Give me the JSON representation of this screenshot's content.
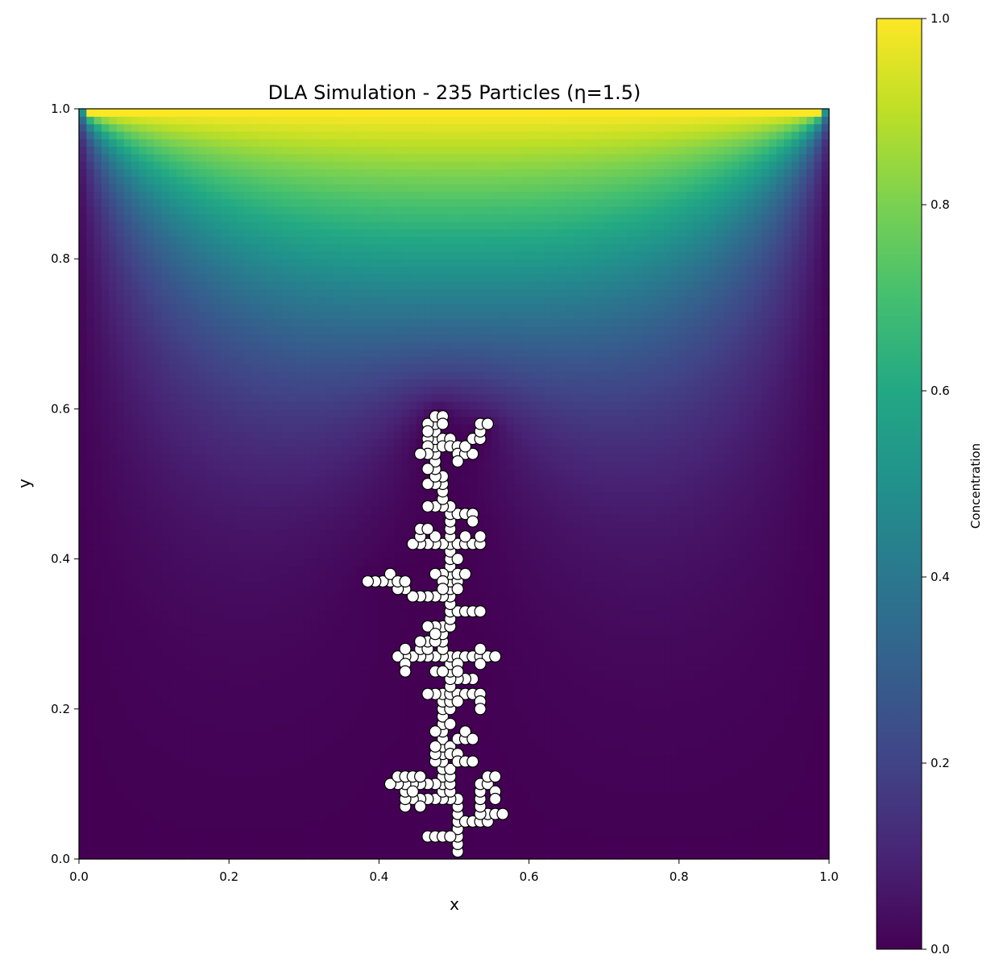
{
  "chart_data": {
    "type": "heatmap",
    "title": "DLA Simulation - 235 Particles (η=1.5)",
    "xlabel": "x",
    "ylabel": "y",
    "xlim": [
      0.0,
      1.0
    ],
    "ylim": [
      0.0,
      1.0
    ],
    "xticks": [
      "0.0",
      "0.2",
      "0.4",
      "0.6",
      "0.8",
      "1.0"
    ],
    "yticks": [
      "0.0",
      "0.2",
      "0.4",
      "0.6",
      "0.8",
      "1.0"
    ],
    "grid": false,
    "heatmap": {
      "colormap": "viridis",
      "field": "Concentration",
      "boundary_top": 1.0,
      "boundary_sides": 0.0,
      "boundary_bottom": 0.0,
      "cluster_sink": 0.0
    },
    "colorbar": {
      "label": "Concentration",
      "range": [
        0.0,
        1.0
      ],
      "ticks": [
        "0.0",
        "0.2",
        "0.4",
        "0.6",
        "0.8",
        "1.0"
      ]
    },
    "particle_style": {
      "fill": "#ffffff",
      "edge": "#000000"
    },
    "particles": [
      [
        0.505,
        0.01
      ],
      [
        0.505,
        0.02
      ],
      [
        0.505,
        0.03
      ],
      [
        0.505,
        0.04
      ],
      [
        0.505,
        0.05
      ],
      [
        0.505,
        0.06
      ],
      [
        0.505,
        0.07
      ],
      [
        0.505,
        0.08
      ],
      [
        0.465,
        0.03
      ],
      [
        0.475,
        0.03
      ],
      [
        0.485,
        0.03
      ],
      [
        0.495,
        0.03
      ],
      [
        0.515,
        0.05
      ],
      [
        0.525,
        0.05
      ],
      [
        0.535,
        0.05
      ],
      [
        0.545,
        0.05
      ],
      [
        0.545,
        0.06
      ],
      [
        0.555,
        0.06
      ],
      [
        0.565,
        0.06
      ],
      [
        0.535,
        0.06
      ],
      [
        0.535,
        0.07
      ],
      [
        0.535,
        0.08
      ],
      [
        0.535,
        0.09
      ],
      [
        0.535,
        0.1
      ],
      [
        0.545,
        0.1
      ],
      [
        0.545,
        0.11
      ],
      [
        0.555,
        0.11
      ],
      [
        0.555,
        0.09
      ],
      [
        0.555,
        0.08
      ],
      [
        0.495,
        0.08
      ],
      [
        0.485,
        0.08
      ],
      [
        0.475,
        0.08
      ],
      [
        0.465,
        0.08
      ],
      [
        0.455,
        0.08
      ],
      [
        0.445,
        0.08
      ],
      [
        0.435,
        0.07
      ],
      [
        0.435,
        0.08
      ],
      [
        0.435,
        0.09
      ],
      [
        0.455,
        0.07
      ],
      [
        0.485,
        0.09
      ],
      [
        0.485,
        0.1
      ],
      [
        0.485,
        0.11
      ],
      [
        0.485,
        0.12
      ],
      [
        0.495,
        0.09
      ],
      [
        0.495,
        0.1
      ],
      [
        0.495,
        0.11
      ],
      [
        0.495,
        0.12
      ],
      [
        0.475,
        0.1
      ],
      [
        0.465,
        0.1
      ],
      [
        0.455,
        0.1
      ],
      [
        0.445,
        0.1
      ],
      [
        0.435,
        0.1
      ],
      [
        0.425,
        0.1
      ],
      [
        0.415,
        0.1
      ],
      [
        0.425,
        0.11
      ],
      [
        0.435,
        0.11
      ],
      [
        0.445,
        0.11
      ],
      [
        0.455,
        0.11
      ],
      [
        0.445,
        0.09
      ],
      [
        0.485,
        0.13
      ],
      [
        0.485,
        0.14
      ],
      [
        0.485,
        0.15
      ],
      [
        0.485,
        0.16
      ],
      [
        0.485,
        0.17
      ],
      [
        0.485,
        0.18
      ],
      [
        0.485,
        0.19
      ],
      [
        0.485,
        0.2
      ],
      [
        0.485,
        0.21
      ],
      [
        0.485,
        0.22
      ],
      [
        0.475,
        0.13
      ],
      [
        0.475,
        0.14
      ],
      [
        0.475,
        0.15
      ],
      [
        0.475,
        0.17
      ],
      [
        0.495,
        0.15
      ],
      [
        0.495,
        0.14
      ],
      [
        0.505,
        0.14
      ],
      [
        0.505,
        0.13
      ],
      [
        0.515,
        0.13
      ],
      [
        0.525,
        0.13
      ],
      [
        0.495,
        0.18
      ],
      [
        0.505,
        0.16
      ],
      [
        0.515,
        0.16
      ],
      [
        0.515,
        0.17
      ],
      [
        0.525,
        0.16
      ],
      [
        0.495,
        0.2
      ],
      [
        0.495,
        0.21
      ],
      [
        0.495,
        0.22
      ],
      [
        0.505,
        0.22
      ],
      [
        0.515,
        0.22
      ],
      [
        0.525,
        0.22
      ],
      [
        0.535,
        0.22
      ],
      [
        0.535,
        0.21
      ],
      [
        0.535,
        0.2
      ],
      [
        0.505,
        0.21
      ],
      [
        0.525,
        0.24
      ],
      [
        0.515,
        0.24
      ],
      [
        0.505,
        0.24
      ],
      [
        0.475,
        0.22
      ],
      [
        0.465,
        0.22
      ],
      [
        0.495,
        0.23
      ],
      [
        0.495,
        0.24
      ],
      [
        0.495,
        0.25
      ],
      [
        0.495,
        0.26
      ],
      [
        0.495,
        0.27
      ],
      [
        0.485,
        0.27
      ],
      [
        0.475,
        0.27
      ],
      [
        0.465,
        0.27
      ],
      [
        0.455,
        0.27
      ],
      [
        0.445,
        0.27
      ],
      [
        0.435,
        0.27
      ],
      [
        0.425,
        0.27
      ],
      [
        0.435,
        0.28
      ],
      [
        0.435,
        0.26
      ],
      [
        0.435,
        0.25
      ],
      [
        0.455,
        0.28
      ],
      [
        0.465,
        0.28
      ],
      [
        0.465,
        0.29
      ],
      [
        0.455,
        0.29
      ],
      [
        0.475,
        0.25
      ],
      [
        0.485,
        0.25
      ],
      [
        0.485,
        0.28
      ],
      [
        0.505,
        0.27
      ],
      [
        0.515,
        0.27
      ],
      [
        0.525,
        0.27
      ],
      [
        0.535,
        0.27
      ],
      [
        0.545,
        0.27
      ],
      [
        0.555,
        0.27
      ],
      [
        0.535,
        0.28
      ],
      [
        0.535,
        0.26
      ],
      [
        0.505,
        0.26
      ],
      [
        0.505,
        0.25
      ],
      [
        0.485,
        0.29
      ],
      [
        0.485,
        0.3
      ],
      [
        0.485,
        0.31
      ],
      [
        0.475,
        0.31
      ],
      [
        0.465,
        0.31
      ],
      [
        0.495,
        0.31
      ],
      [
        0.495,
        0.32
      ],
      [
        0.495,
        0.33
      ],
      [
        0.505,
        0.33
      ],
      [
        0.515,
        0.33
      ],
      [
        0.525,
        0.33
      ],
      [
        0.535,
        0.33
      ],
      [
        0.475,
        0.29
      ],
      [
        0.475,
        0.3
      ],
      [
        0.495,
        0.34
      ],
      [
        0.495,
        0.35
      ],
      [
        0.485,
        0.35
      ],
      [
        0.475,
        0.35
      ],
      [
        0.465,
        0.35
      ],
      [
        0.455,
        0.35
      ],
      [
        0.445,
        0.35
      ],
      [
        0.435,
        0.36
      ],
      [
        0.425,
        0.36
      ],
      [
        0.415,
        0.37
      ],
      [
        0.405,
        0.37
      ],
      [
        0.395,
        0.37
      ],
      [
        0.385,
        0.37
      ],
      [
        0.415,
        0.38
      ],
      [
        0.425,
        0.37
      ],
      [
        0.435,
        0.37
      ],
      [
        0.495,
        0.36
      ],
      [
        0.495,
        0.37
      ],
      [
        0.495,
        0.38
      ],
      [
        0.495,
        0.39
      ],
      [
        0.485,
        0.38
      ],
      [
        0.475,
        0.38
      ],
      [
        0.485,
        0.37
      ],
      [
        0.505,
        0.37
      ],
      [
        0.505,
        0.38
      ],
      [
        0.515,
        0.38
      ],
      [
        0.505,
        0.36
      ],
      [
        0.485,
        0.36
      ],
      [
        0.495,
        0.4
      ],
      [
        0.495,
        0.41
      ],
      [
        0.495,
        0.42
      ],
      [
        0.505,
        0.4
      ],
      [
        0.505,
        0.42
      ],
      [
        0.485,
        0.42
      ],
      [
        0.475,
        0.42
      ],
      [
        0.465,
        0.42
      ],
      [
        0.455,
        0.42
      ],
      [
        0.445,
        0.42
      ],
      [
        0.455,
        0.43
      ],
      [
        0.475,
        0.43
      ],
      [
        0.455,
        0.44
      ],
      [
        0.465,
        0.44
      ],
      [
        0.515,
        0.42
      ],
      [
        0.525,
        0.42
      ],
      [
        0.535,
        0.42
      ],
      [
        0.535,
        0.43
      ],
      [
        0.515,
        0.43
      ],
      [
        0.495,
        0.43
      ],
      [
        0.495,
        0.44
      ],
      [
        0.495,
        0.45
      ],
      [
        0.495,
        0.46
      ],
      [
        0.505,
        0.46
      ],
      [
        0.515,
        0.46
      ],
      [
        0.525,
        0.46
      ],
      [
        0.525,
        0.45
      ],
      [
        0.495,
        0.47
      ],
      [
        0.485,
        0.47
      ],
      [
        0.475,
        0.47
      ],
      [
        0.465,
        0.47
      ],
      [
        0.485,
        0.48
      ],
      [
        0.485,
        0.49
      ],
      [
        0.485,
        0.5
      ],
      [
        0.475,
        0.5
      ],
      [
        0.465,
        0.5
      ],
      [
        0.485,
        0.51
      ],
      [
        0.475,
        0.51
      ],
      [
        0.475,
        0.52
      ],
      [
        0.475,
        0.53
      ],
      [
        0.475,
        0.54
      ],
      [
        0.475,
        0.55
      ],
      [
        0.475,
        0.56
      ],
      [
        0.475,
        0.57
      ],
      [
        0.475,
        0.58
      ],
      [
        0.465,
        0.58
      ],
      [
        0.475,
        0.59
      ],
      [
        0.485,
        0.59
      ],
      [
        0.465,
        0.56
      ],
      [
        0.465,
        0.55
      ],
      [
        0.465,
        0.54
      ],
      [
        0.455,
        0.54
      ],
      [
        0.465,
        0.52
      ],
      [
        0.465,
        0.57
      ],
      [
        0.485,
        0.56
      ],
      [
        0.485,
        0.55
      ],
      [
        0.495,
        0.56
      ],
      [
        0.485,
        0.58
      ],
      [
        0.495,
        0.55
      ],
      [
        0.505,
        0.55
      ],
      [
        0.505,
        0.54
      ],
      [
        0.515,
        0.54
      ],
      [
        0.525,
        0.54
      ],
      [
        0.515,
        0.55
      ],
      [
        0.525,
        0.56
      ],
      [
        0.535,
        0.56
      ],
      [
        0.535,
        0.57
      ],
      [
        0.535,
        0.58
      ],
      [
        0.545,
        0.58
      ],
      [
        0.505,
        0.53
      ]
    ]
  }
}
